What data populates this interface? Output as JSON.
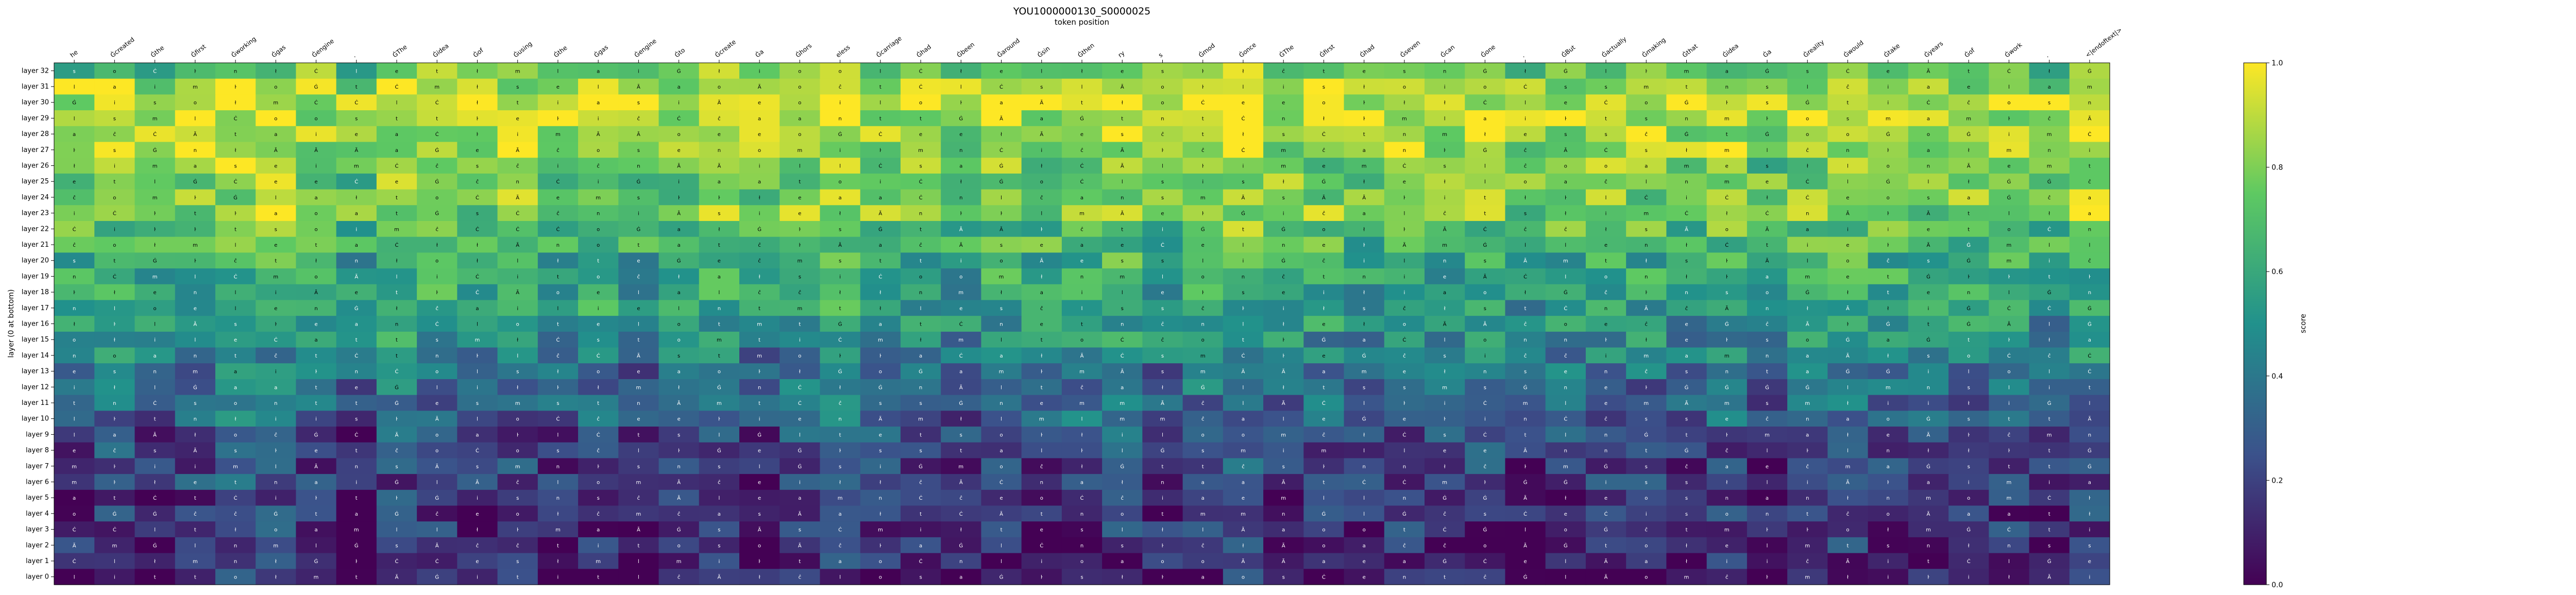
{
  "chart_data": {
    "type": "heatmap",
    "title": "YOU1000000130_S0000025",
    "xlabel": "token position",
    "ylabel": "layer (0 at bottom)",
    "colorbar_label": "score",
    "colorbar_range": [
      0.0,
      1.0
    ],
    "colorbar_ticks": [
      "0.0",
      "0.2",
      "0.4",
      "0.6",
      "0.8",
      "1.0"
    ],
    "colormap": [
      "#440154",
      "#3b528b",
      "#21918c",
      "#5ec962",
      "#fde725"
    ],
    "x_tokens": [
      "he",
      "Ġcreated",
      "Ġthe",
      "Ġfirst",
      "Ġworking",
      "Ġgas",
      "Ġengine",
      ".",
      "ĠThe",
      "Ġidea",
      "Ġof",
      "Ġusing",
      "Ġthe",
      "Ġgas",
      "Ġengine",
      "Ġto",
      "Ġcreate",
      "Ġa",
      "Ġhors",
      "eless",
      "Ġcarriage",
      "Ġhad",
      "Ġbeen",
      "Ġaround",
      "Ġsin",
      "Ġthen",
      "ry",
      "s",
      "Ġmod",
      "Ġonce",
      "ĠThe",
      "Ġfirst",
      "Ġhad",
      "Ġseven",
      "Ġcan",
      "Ġone",
      ".",
      "ĠBut",
      "Ġactually",
      "Ġmaking",
      "Ġthat",
      "Ġidea",
      "Ġa",
      "Ġreality",
      "Ġwould",
      "Ġtake",
      "Ġyears",
      "Ġof",
      "Ġwork",
      ".",
      "<|endoftext|>"
    ],
    "y_layers": [
      "layer 32",
      "layer 31",
      "layer 30",
      "layer 29",
      "layer 28",
      "layer 27",
      "layer 26",
      "layer 25",
      "layer 24",
      "layer 23",
      "layer 22",
      "layer 21",
      "layer 20",
      "layer 19",
      "layer 18",
      "layer 17",
      "layer 16",
      "layer 15",
      "layer 14",
      "layer 13",
      "layer 12",
      "layer 11",
      "layer 10",
      "layer 9",
      "layer 8",
      "layer 7",
      "layer 6",
      "layer 5",
      "layer 4",
      "layer 3",
      "layer 2",
      "layer 1",
      "layer 0"
    ],
    "row_mean_scores": [
      0.72,
      0.86,
      0.9,
      0.86,
      0.84,
      0.82,
      0.76,
      0.75,
      0.76,
      0.78,
      0.68,
      0.66,
      0.58,
      0.57,
      0.56,
      0.52,
      0.5,
      0.46,
      0.4,
      0.34,
      0.32,
      0.31,
      0.29,
      0.2,
      0.18,
      0.17,
      0.16,
      0.13,
      0.12,
      0.11,
      0.1,
      0.08,
      0.06
    ],
    "col_offsets": [
      0.0,
      0.06,
      -0.02,
      0.04,
      0.1,
      0.08,
      0.02,
      -0.06,
      0.07,
      0.05,
      -0.01,
      0.03,
      0.0,
      0.06,
      -0.03,
      0.01,
      0.05,
      -0.04,
      0.04,
      0.08,
      0.03,
      0.02,
      -0.02,
      0.04,
      0.01,
      0.05,
      0.07,
      -0.01,
      0.06,
      0.09,
      0.02,
      0.03,
      -0.02,
      0.04,
      0.0,
      0.05,
      -0.04,
      0.01,
      0.03,
      0.02,
      -0.03,
      0.04,
      -0.05,
      0.02,
      0.06,
      0.03,
      0.0,
      0.01,
      0.04,
      -0.04,
      0.08
    ],
    "cell_glyphs": [
      "a",
      "i",
      "e",
      "o",
      "m",
      "Ġ",
      "Ã",
      "Ċ",
      "s",
      "t",
      "n",
      "l",
      "ŀ",
      "ĉ",
      "ł"
    ]
  }
}
